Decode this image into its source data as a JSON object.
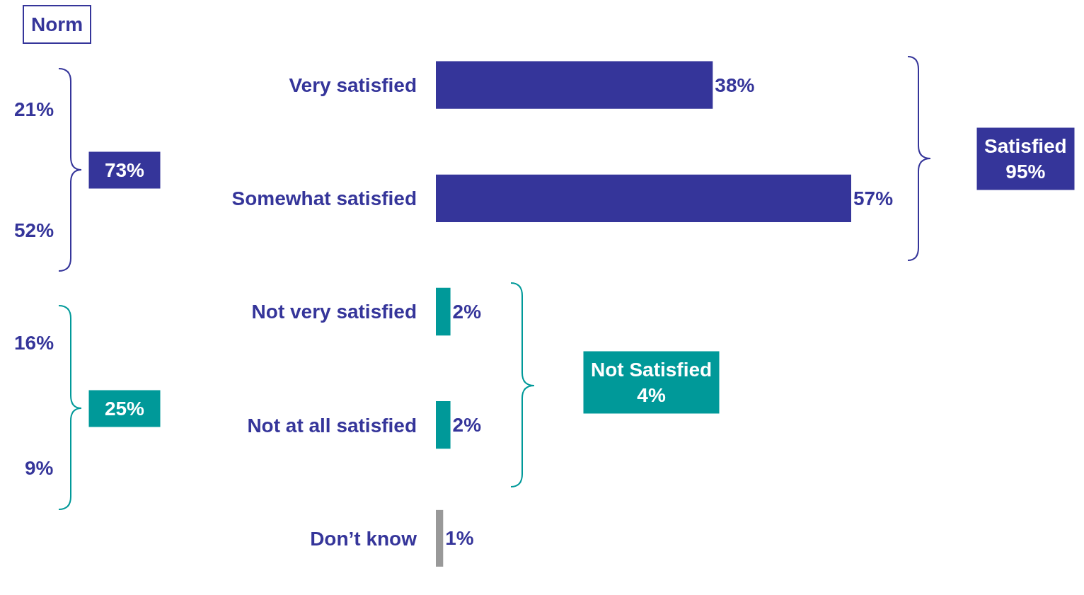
{
  "chart_data": {
    "type": "bar",
    "orientation": "horizontal",
    "categories": [
      "Very satisfied",
      "Somewhat satisfied",
      "Not very satisfied",
      "Not at all satisfied",
      "Don’t know"
    ],
    "values": [
      38,
      57,
      2,
      2,
      1
    ],
    "colors": [
      "#35359a",
      "#35359a",
      "#009999",
      "#009999",
      "#999999"
    ],
    "value_labels": [
      "38%",
      "57%",
      "2%",
      "2%",
      "1%"
    ],
    "tick_labels": "y",
    "legend": false,
    "annotations": [
      "Norm",
      "21%",
      "52%",
      "73%",
      "16%",
      "9%",
      "25%",
      "Satisfied\n95%",
      "Not Satisfied\n4%"
    ]
  }
}
